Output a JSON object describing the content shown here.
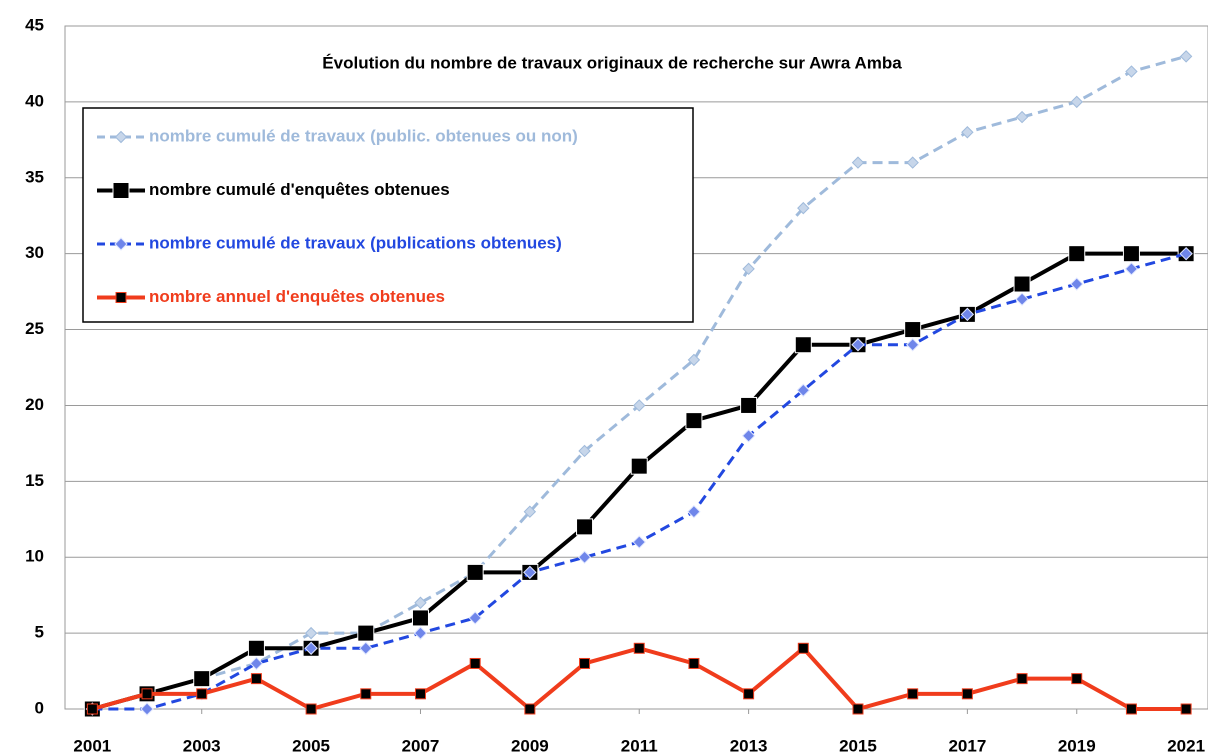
{
  "chart_data": {
    "type": "line",
    "title": "Évolution du nombre de travaux originaux de recherche sur Awra Amba",
    "x": [
      2001,
      2002,
      2003,
      2004,
      2005,
      2006,
      2007,
      2008,
      2009,
      2010,
      2011,
      2012,
      2013,
      2014,
      2015,
      2016,
      2017,
      2018,
      2019,
      2020,
      2021
    ],
    "series": [
      {
        "name": "nombre cumulé de travaux (public. obtenues ou non)",
        "color": "#9fbadb",
        "marker": "diamond",
        "line_style": "dashed",
        "values": [
          0,
          1,
          2,
          3,
          5,
          5,
          7,
          9,
          13,
          17,
          20,
          23,
          29,
          33,
          36,
          36,
          38,
          39,
          40,
          42,
          43
        ]
      },
      {
        "name": "nombre cumulé d'enquêtes obtenues",
        "color": "#000000",
        "marker": "square",
        "line_style": "solid",
        "values": [
          0,
          1,
          2,
          4,
          4,
          5,
          6,
          9,
          9,
          12,
          16,
          19,
          20,
          24,
          24,
          25,
          26,
          28,
          30,
          30,
          30
        ]
      },
      {
        "name": "nombre cumulé de travaux (publications obtenues)",
        "color": "#2248e0",
        "marker": "diamond",
        "line_style": "dashed",
        "values": [
          0,
          0,
          1,
          3,
          4,
          4,
          5,
          6,
          9,
          10,
          11,
          13,
          18,
          21,
          24,
          24,
          26,
          27,
          28,
          29,
          30
        ]
      },
      {
        "name": "nombre annuel d'enquêtes obtenues",
        "color": "#f03c1c",
        "marker": "small-square",
        "line_style": "solid",
        "values": [
          0,
          1,
          1,
          2,
          0,
          1,
          1,
          3,
          0,
          3,
          4,
          3,
          1,
          4,
          0,
          1,
          1,
          2,
          2,
          0,
          0
        ]
      }
    ],
    "xlim": [
      2000.5,
      2021.4
    ],
    "xticks": [
      2001,
      2003,
      2005,
      2007,
      2009,
      2011,
      2013,
      2015,
      2017,
      2019,
      2021
    ],
    "ylim": [
      0,
      45
    ],
    "yticks": [
      0,
      5,
      10,
      15,
      20,
      25,
      30,
      35,
      40,
      45
    ],
    "grid": true,
    "legend": "upper left"
  }
}
